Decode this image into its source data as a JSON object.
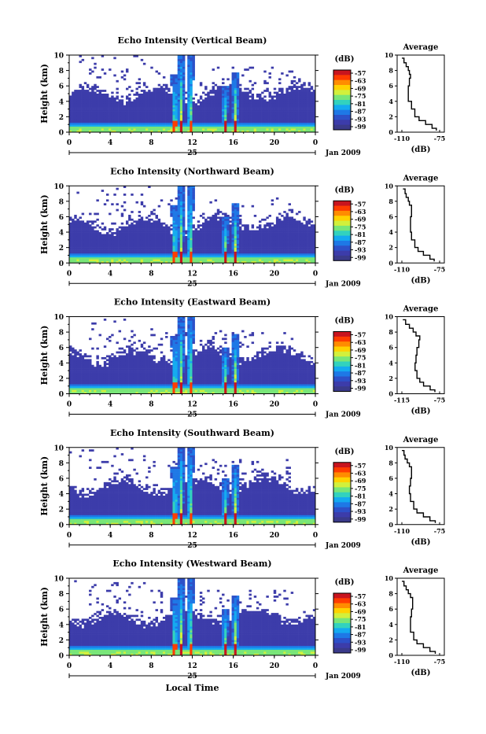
{
  "chart_data": {
    "type": "heatmap",
    "colorbar": {
      "unit": "(dB)",
      "ticks": [
        "-57",
        "-63",
        "-69",
        "-75",
        "-81",
        "-87",
        "-93",
        "-99"
      ],
      "colors": [
        "#c8141e",
        "#ff3c00",
        "#ff8c00",
        "#ffd200",
        "#d2f03c",
        "#78e678",
        "#32d2be",
        "#14aaf0",
        "#1e78e6",
        "#2d50c8",
        "#3c3caa",
        "#3a3a8a"
      ]
    },
    "xaxis": {
      "ticks": [
        "0",
        "4",
        "8",
        "12",
        "16",
        "20",
        "0"
      ],
      "day_label": "25",
      "month_label": "Jan 2009",
      "xlabel": "Local Time",
      "range": [
        0,
        24
      ]
    },
    "yaxis": {
      "label": "Height (km)",
      "ticks": [
        "0",
        "2",
        "4",
        "6",
        "8",
        "10"
      ],
      "range": [
        0,
        10
      ]
    },
    "average_profile_title": "Average",
    "average_xlabel": "(dB)",
    "panels": [
      {
        "title": "Echo Intensity (Vertical Beam)",
        "avg_ticks": [
          "-110",
          "-75"
        ],
        "avg_profile": [
          {
            "h": 0.2,
            "db": -78
          },
          {
            "h": 0.5,
            "db": -82
          },
          {
            "h": 1.0,
            "db": -88
          },
          {
            "h": 1.5,
            "db": -94
          },
          {
            "h": 2.0,
            "db": -98
          },
          {
            "h": 3.0,
            "db": -101
          },
          {
            "h": 4.0,
            "db": -104
          },
          {
            "h": 5.0,
            "db": -104
          },
          {
            "h": 6.0,
            "db": -103
          },
          {
            "h": 7.0,
            "db": -102
          },
          {
            "h": 7.5,
            "db": -103
          },
          {
            "h": 8.0,
            "db": -104
          },
          {
            "h": 8.5,
            "db": -106
          },
          {
            "h": 9.0,
            "db": -108
          },
          {
            "h": 9.6,
            "db": -110
          }
        ]
      },
      {
        "title": "Echo Intensity (Northward Beam)",
        "avg_ticks": [
          "-110",
          "-75"
        ],
        "avg_profile": [
          {
            "h": 0.2,
            "db": -80
          },
          {
            "h": 0.5,
            "db": -84
          },
          {
            "h": 1.0,
            "db": -90
          },
          {
            "h": 1.5,
            "db": -95
          },
          {
            "h": 2.0,
            "db": -98
          },
          {
            "h": 3.0,
            "db": -101
          },
          {
            "h": 4.0,
            "db": -102
          },
          {
            "h": 5.0,
            "db": -102
          },
          {
            "h": 6.0,
            "db": -101
          },
          {
            "h": 7.0,
            "db": -101
          },
          {
            "h": 7.5,
            "db": -103
          },
          {
            "h": 8.0,
            "db": -104
          },
          {
            "h": 8.5,
            "db": -106
          },
          {
            "h": 9.0,
            "db": -107
          },
          {
            "h": 9.6,
            "db": -109
          }
        ]
      },
      {
        "title": "Echo Intensity (Eastward Beam)",
        "avg_ticks": [
          "-115",
          "-75"
        ],
        "avg_profile": [
          {
            "h": 0.2,
            "db": -80
          },
          {
            "h": 0.5,
            "db": -85
          },
          {
            "h": 1.0,
            "db": -92
          },
          {
            "h": 1.5,
            "db": -96
          },
          {
            "h": 2.0,
            "db": -99
          },
          {
            "h": 3.0,
            "db": -101
          },
          {
            "h": 4.0,
            "db": -100
          },
          {
            "h": 5.0,
            "db": -99
          },
          {
            "h": 6.0,
            "db": -97
          },
          {
            "h": 7.0,
            "db": -96
          },
          {
            "h": 7.5,
            "db": -100
          },
          {
            "h": 8.0,
            "db": -103
          },
          {
            "h": 8.5,
            "db": -107
          },
          {
            "h": 9.0,
            "db": -111
          },
          {
            "h": 9.6,
            "db": -114
          }
        ]
      },
      {
        "title": "Echo Intensity (Southward Beam)",
        "avg_ticks": [
          "-110",
          "-75"
        ],
        "avg_profile": [
          {
            "h": 0.2,
            "db": -79
          },
          {
            "h": 0.5,
            "db": -84
          },
          {
            "h": 1.0,
            "db": -90
          },
          {
            "h": 1.5,
            "db": -96
          },
          {
            "h": 2.0,
            "db": -99
          },
          {
            "h": 3.0,
            "db": -102
          },
          {
            "h": 4.0,
            "db": -103
          },
          {
            "h": 5.0,
            "db": -102
          },
          {
            "h": 6.0,
            "db": -101
          },
          {
            "h": 7.0,
            "db": -101
          },
          {
            "h": 7.5,
            "db": -103
          },
          {
            "h": 8.0,
            "db": -105
          },
          {
            "h": 8.5,
            "db": -107
          },
          {
            "h": 9.0,
            "db": -108
          },
          {
            "h": 9.6,
            "db": -110
          }
        ]
      },
      {
        "title": "Echo Intensity (Westward Beam)",
        "avg_ticks": [
          "-110",
          "-75"
        ],
        "avg_profile": [
          {
            "h": 0.2,
            "db": -79
          },
          {
            "h": 0.5,
            "db": -84
          },
          {
            "h": 1.0,
            "db": -90
          },
          {
            "h": 1.5,
            "db": -96
          },
          {
            "h": 2.0,
            "db": -99
          },
          {
            "h": 3.0,
            "db": -102
          },
          {
            "h": 4.0,
            "db": -102
          },
          {
            "h": 5.0,
            "db": -101
          },
          {
            "h": 6.0,
            "db": -100
          },
          {
            "h": 7.0,
            "db": -100
          },
          {
            "h": 7.5,
            "db": -102
          },
          {
            "h": 8.0,
            "db": -104
          },
          {
            "h": 8.5,
            "db": -106
          },
          {
            "h": 9.0,
            "db": -108
          },
          {
            "h": 9.6,
            "db": -110
          }
        ]
      }
    ],
    "convective_events": [
      {
        "time": 10.3,
        "top_km": 7.5
      },
      {
        "time": 10.9,
        "top_km": 10.0
      },
      {
        "time": 11.8,
        "top_km": 10.0
      },
      {
        "time": 15.2,
        "top_km": 6.0
      },
      {
        "time": 16.2,
        "top_km": 7.8
      }
    ]
  }
}
